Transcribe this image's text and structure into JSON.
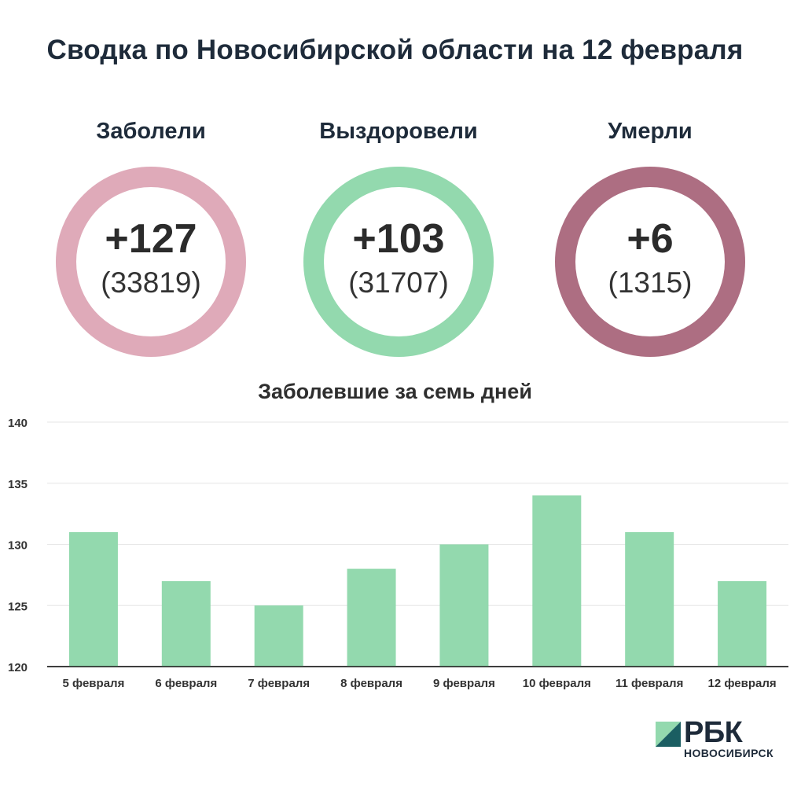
{
  "title": "Сводка по Новосибирской области на 12 февраля",
  "stats": [
    {
      "label": "Заболели",
      "delta": "+127",
      "total": "(33819)",
      "color": "#dfaab9"
    },
    {
      "label": "Выздоровели",
      "delta": "+103",
      "total": "(31707)",
      "color": "#93d9ae"
    },
    {
      "label": "Умерли",
      "delta": "+6",
      "total": "(1315)",
      "color": "#ad6e82"
    }
  ],
  "chart_data": {
    "type": "bar",
    "title": "Заболевшие за семь дней",
    "categories": [
      "5 февраля",
      "6 февраля",
      "7 февраля",
      "8 февраля",
      "9 февраля",
      "10 февраля",
      "11 февраля",
      "12 февраля"
    ],
    "values": [
      131,
      127,
      125,
      128,
      130,
      134,
      131,
      127
    ],
    "ylim": [
      120,
      140
    ],
    "yticks": [
      120,
      125,
      130,
      135,
      140
    ],
    "grid": true,
    "bar_color": "#93d9ae"
  },
  "logo": {
    "name": "РБК",
    "sub": "НОВОСИБИРСК",
    "colors": {
      "light": "#93d9ae",
      "dark": "#1b5e62"
    }
  }
}
